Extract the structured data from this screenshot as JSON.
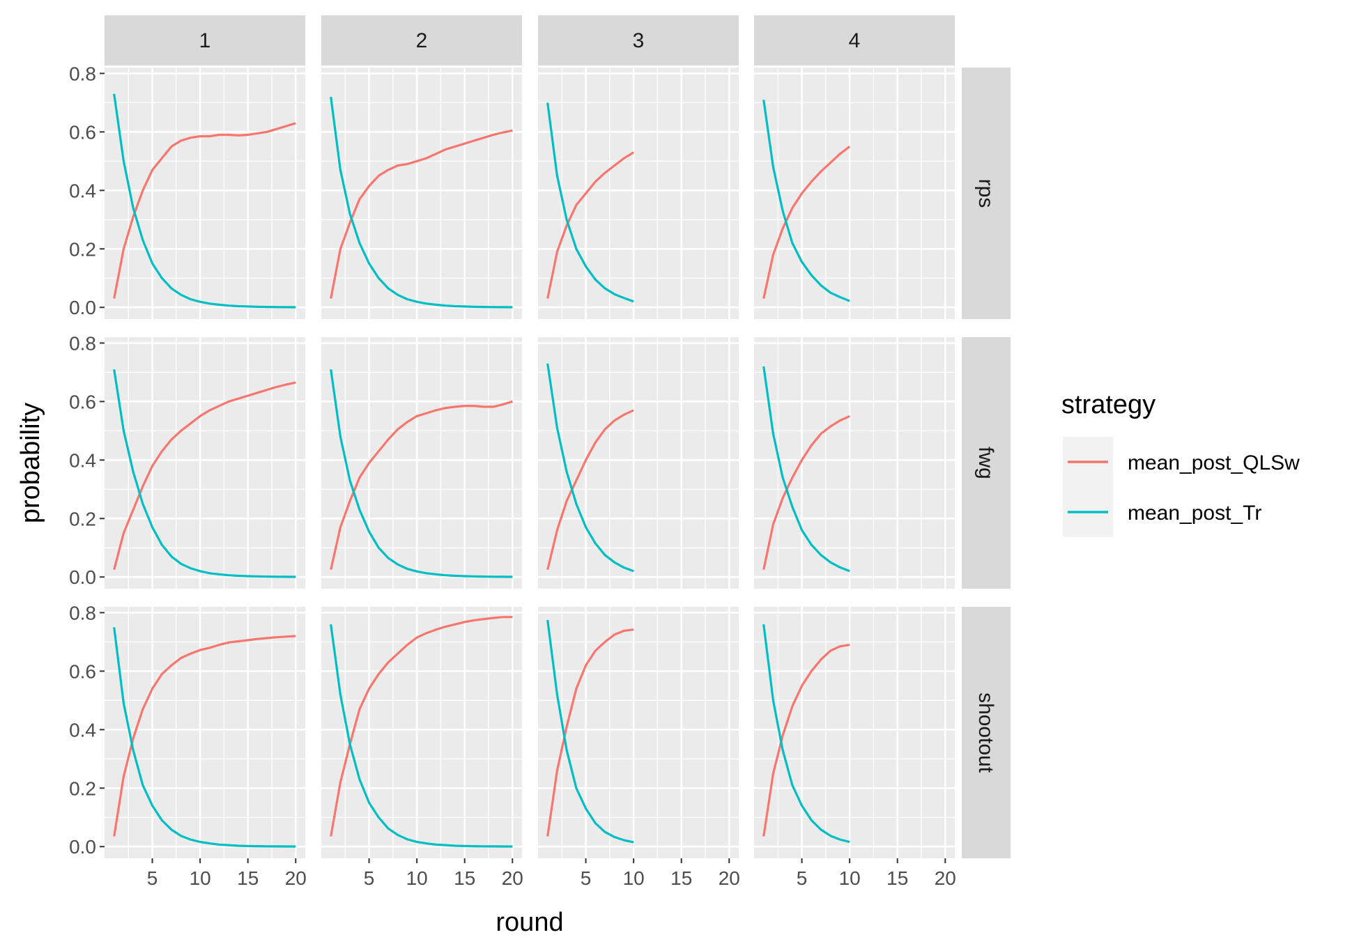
{
  "chart_data": {
    "type": "line",
    "facet_layout": "grid",
    "xlabel": "round",
    "ylabel": "probability",
    "col_facets": [
      "1",
      "2",
      "3",
      "4"
    ],
    "row_facets": [
      "rps",
      "fwg",
      "shootout"
    ],
    "xlim": [
      0,
      21
    ],
    "ylim": [
      -0.04,
      0.82
    ],
    "xticks": [
      5,
      10,
      15,
      20
    ],
    "yticks": [
      0.0,
      0.2,
      0.4,
      0.6,
      0.8
    ],
    "ytick_labels": [
      "0.0",
      "0.2",
      "0.4",
      "0.6",
      "0.8"
    ],
    "grid": true,
    "legend": {
      "title": "strategy",
      "position": "right",
      "entries": [
        {
          "name": "mean_post_QLSw",
          "color": "#F8766D"
        },
        {
          "name": "mean_post_Tr",
          "color": "#00BFC4"
        }
      ]
    },
    "panels": [
      {
        "row": "rps",
        "col": "1",
        "series": [
          {
            "name": "mean_post_QLSw",
            "x": [
              1,
              2,
              3,
              4,
              5,
              6,
              7,
              8,
              9,
              10,
              11,
              12,
              13,
              14,
              15,
              16,
              17,
              18,
              19,
              20
            ],
            "values": [
              0.03,
              0.2,
              0.31,
              0.4,
              0.47,
              0.51,
              0.55,
              0.57,
              0.58,
              0.585,
              0.585,
              0.59,
              0.59,
              0.588,
              0.59,
              0.595,
              0.6,
              0.61,
              0.62,
              0.63
            ]
          },
          {
            "name": "mean_post_Tr",
            "x": [
              1,
              2,
              3,
              4,
              5,
              6,
              7,
              8,
              9,
              10,
              11,
              12,
              13,
              14,
              15,
              16,
              17,
              18,
              19,
              20
            ],
            "values": [
              0.73,
              0.5,
              0.34,
              0.23,
              0.15,
              0.1,
              0.065,
              0.043,
              0.028,
              0.019,
              0.013,
              0.009,
              0.006,
              0.004,
              0.003,
              0.002,
              0.0015,
              0.001,
              0.0008,
              0.0005
            ]
          }
        ]
      },
      {
        "row": "rps",
        "col": "2",
        "series": [
          {
            "name": "mean_post_QLSw",
            "x": [
              1,
              2,
              3,
              4,
              5,
              6,
              7,
              8,
              9,
              10,
              11,
              12,
              13,
              14,
              15,
              16,
              17,
              18,
              19,
              20
            ],
            "values": [
              0.03,
              0.2,
              0.29,
              0.37,
              0.415,
              0.45,
              0.47,
              0.485,
              0.49,
              0.5,
              0.51,
              0.525,
              0.54,
              0.55,
              0.56,
              0.57,
              0.58,
              0.59,
              0.598,
              0.605
            ]
          },
          {
            "name": "mean_post_Tr",
            "x": [
              1,
              2,
              3,
              4,
              5,
              6,
              7,
              8,
              9,
              10,
              11,
              12,
              13,
              14,
              15,
              16,
              17,
              18,
              19,
              20
            ],
            "values": [
              0.72,
              0.47,
              0.32,
              0.22,
              0.15,
              0.1,
              0.065,
              0.043,
              0.028,
              0.019,
              0.013,
              0.009,
              0.006,
              0.004,
              0.003,
              0.002,
              0.0015,
              0.001,
              0.0008,
              0.0005
            ]
          }
        ]
      },
      {
        "row": "rps",
        "col": "3",
        "series": [
          {
            "name": "mean_post_QLSw",
            "x": [
              1,
              2,
              3,
              4,
              5,
              6,
              7,
              8,
              9,
              10
            ],
            "values": [
              0.03,
              0.19,
              0.28,
              0.35,
              0.39,
              0.43,
              0.46,
              0.485,
              0.51,
              0.53
            ]
          },
          {
            "name": "mean_post_Tr",
            "x": [
              1,
              2,
              3,
              4,
              5,
              6,
              7,
              8,
              9,
              10
            ],
            "values": [
              0.7,
              0.45,
              0.3,
              0.2,
              0.14,
              0.095,
              0.065,
              0.045,
              0.032,
              0.02
            ]
          }
        ]
      },
      {
        "row": "rps",
        "col": "4",
        "series": [
          {
            "name": "mean_post_QLSw",
            "x": [
              1,
              2,
              3,
              4,
              5,
              6,
              7,
              8,
              9,
              10
            ],
            "values": [
              0.03,
              0.18,
              0.27,
              0.34,
              0.39,
              0.43,
              0.465,
              0.495,
              0.525,
              0.55
            ]
          },
          {
            "name": "mean_post_Tr",
            "x": [
              1,
              2,
              3,
              4,
              5,
              6,
              7,
              8,
              9,
              10
            ],
            "values": [
              0.71,
              0.48,
              0.33,
              0.22,
              0.155,
              0.11,
              0.075,
              0.05,
              0.035,
              0.022
            ]
          }
        ]
      },
      {
        "row": "fwg",
        "col": "1",
        "series": [
          {
            "name": "mean_post_QLSw",
            "x": [
              1,
              2,
              3,
              4,
              5,
              6,
              7,
              8,
              9,
              10,
              11,
              12,
              13,
              14,
              15,
              16,
              17,
              18,
              19,
              20
            ],
            "values": [
              0.025,
              0.15,
              0.23,
              0.31,
              0.38,
              0.43,
              0.47,
              0.5,
              0.525,
              0.55,
              0.57,
              0.585,
              0.6,
              0.61,
              0.62,
              0.63,
              0.64,
              0.65,
              0.658,
              0.665
            ]
          },
          {
            "name": "mean_post_Tr",
            "x": [
              1,
              2,
              3,
              4,
              5,
              6,
              7,
              8,
              9,
              10,
              11,
              12,
              13,
              14,
              15,
              16,
              17,
              18,
              19,
              20
            ],
            "values": [
              0.71,
              0.5,
              0.36,
              0.25,
              0.17,
              0.11,
              0.07,
              0.045,
              0.03,
              0.02,
              0.013,
              0.009,
              0.006,
              0.004,
              0.003,
              0.002,
              0.0015,
              0.001,
              0.0008,
              0.0005
            ]
          }
        ]
      },
      {
        "row": "fwg",
        "col": "2",
        "series": [
          {
            "name": "mean_post_QLSw",
            "x": [
              1,
              2,
              3,
              4,
              5,
              6,
              7,
              8,
              9,
              10,
              11,
              12,
              13,
              14,
              15,
              16,
              17,
              18,
              19,
              20
            ],
            "values": [
              0.025,
              0.17,
              0.26,
              0.34,
              0.39,
              0.43,
              0.47,
              0.505,
              0.53,
              0.55,
              0.56,
              0.57,
              0.578,
              0.582,
              0.585,
              0.585,
              0.582,
              0.582,
              0.59,
              0.6
            ]
          },
          {
            "name": "mean_post_Tr",
            "x": [
              1,
              2,
              3,
              4,
              5,
              6,
              7,
              8,
              9,
              10,
              11,
              12,
              13,
              14,
              15,
              16,
              17,
              18,
              19,
              20
            ],
            "values": [
              0.71,
              0.48,
              0.33,
              0.23,
              0.155,
              0.1,
              0.065,
              0.043,
              0.028,
              0.019,
              0.013,
              0.009,
              0.006,
              0.004,
              0.003,
              0.002,
              0.0015,
              0.001,
              0.0008,
              0.0005
            ]
          }
        ]
      },
      {
        "row": "fwg",
        "col": "3",
        "series": [
          {
            "name": "mean_post_QLSw",
            "x": [
              1,
              2,
              3,
              4,
              5,
              6,
              7,
              8,
              9,
              10
            ],
            "values": [
              0.025,
              0.16,
              0.26,
              0.33,
              0.4,
              0.46,
              0.505,
              0.535,
              0.555,
              0.57
            ]
          },
          {
            "name": "mean_post_Tr",
            "x": [
              1,
              2,
              3,
              4,
              5,
              6,
              7,
              8,
              9,
              10
            ],
            "values": [
              0.73,
              0.51,
              0.36,
              0.25,
              0.17,
              0.115,
              0.075,
              0.05,
              0.032,
              0.02
            ]
          }
        ]
      },
      {
        "row": "fwg",
        "col": "4",
        "series": [
          {
            "name": "mean_post_QLSw",
            "x": [
              1,
              2,
              3,
              4,
              5,
              6,
              7,
              8,
              9,
              10
            ],
            "values": [
              0.025,
              0.18,
              0.27,
              0.34,
              0.4,
              0.45,
              0.49,
              0.515,
              0.535,
              0.55
            ]
          },
          {
            "name": "mean_post_Tr",
            "x": [
              1,
              2,
              3,
              4,
              5,
              6,
              7,
              8,
              9,
              10
            ],
            "values": [
              0.72,
              0.49,
              0.34,
              0.24,
              0.16,
              0.11,
              0.075,
              0.05,
              0.033,
              0.02
            ]
          }
        ]
      },
      {
        "row": "shootout",
        "col": "1",
        "series": [
          {
            "name": "mean_post_QLSw",
            "x": [
              1,
              2,
              3,
              4,
              5,
              6,
              7,
              8,
              9,
              10,
              11,
              12,
              13,
              14,
              15,
              16,
              17,
              18,
              19,
              20
            ],
            "values": [
              0.035,
              0.24,
              0.37,
              0.47,
              0.54,
              0.59,
              0.62,
              0.645,
              0.66,
              0.672,
              0.68,
              0.69,
              0.698,
              0.702,
              0.706,
              0.71,
              0.713,
              0.716,
              0.718,
              0.72
            ]
          },
          {
            "name": "mean_post_Tr",
            "x": [
              1,
              2,
              3,
              4,
              5,
              6,
              7,
              8,
              9,
              10,
              11,
              12,
              13,
              14,
              15,
              16,
              17,
              18,
              19,
              20
            ],
            "values": [
              0.75,
              0.49,
              0.33,
              0.21,
              0.14,
              0.09,
              0.058,
              0.037,
              0.024,
              0.016,
              0.011,
              0.007,
              0.005,
              0.003,
              0.002,
              0.0015,
              0.001,
              0.0008,
              0.0006,
              0.0004
            ]
          }
        ]
      },
      {
        "row": "shootout",
        "col": "2",
        "series": [
          {
            "name": "mean_post_QLSw",
            "x": [
              1,
              2,
              3,
              4,
              5,
              6,
              7,
              8,
              9,
              10,
              11,
              12,
              13,
              14,
              15,
              16,
              17,
              18,
              19,
              20
            ],
            "values": [
              0.035,
              0.22,
              0.35,
              0.47,
              0.54,
              0.59,
              0.63,
              0.66,
              0.69,
              0.715,
              0.73,
              0.742,
              0.752,
              0.76,
              0.768,
              0.774,
              0.778,
              0.782,
              0.785,
              0.785
            ]
          },
          {
            "name": "mean_post_Tr",
            "x": [
              1,
              2,
              3,
              4,
              5,
              6,
              7,
              8,
              9,
              10,
              11,
              12,
              13,
              14,
              15,
              16,
              17,
              18,
              19,
              20
            ],
            "values": [
              0.76,
              0.52,
              0.35,
              0.23,
              0.15,
              0.1,
              0.062,
              0.04,
              0.025,
              0.016,
              0.011,
              0.007,
              0.005,
              0.003,
              0.002,
              0.0015,
              0.001,
              0.0008,
              0.0006,
              0.0004
            ]
          }
        ]
      },
      {
        "row": "shootout",
        "col": "3",
        "series": [
          {
            "name": "mean_post_QLSw",
            "x": [
              1,
              2,
              3,
              4,
              5,
              6,
              7,
              8,
              9,
              10
            ],
            "values": [
              0.035,
              0.26,
              0.41,
              0.54,
              0.62,
              0.67,
              0.7,
              0.725,
              0.738,
              0.742
            ]
          },
          {
            "name": "mean_post_Tr",
            "x": [
              1,
              2,
              3,
              4,
              5,
              6,
              7,
              8,
              9,
              10
            ],
            "values": [
              0.775,
              0.52,
              0.33,
              0.2,
              0.13,
              0.08,
              0.05,
              0.033,
              0.022,
              0.015
            ]
          }
        ]
      },
      {
        "row": "shootout",
        "col": "4",
        "series": [
          {
            "name": "mean_post_QLSw",
            "x": [
              1,
              2,
              3,
              4,
              5,
              6,
              7,
              8,
              9,
              10
            ],
            "values": [
              0.035,
              0.25,
              0.38,
              0.48,
              0.55,
              0.6,
              0.64,
              0.67,
              0.685,
              0.69
            ]
          },
          {
            "name": "mean_post_Tr",
            "x": [
              1,
              2,
              3,
              4,
              5,
              6,
              7,
              8,
              9,
              10
            ],
            "values": [
              0.76,
              0.5,
              0.33,
              0.21,
              0.14,
              0.09,
              0.058,
              0.037,
              0.024,
              0.016
            ]
          }
        ]
      }
    ]
  }
}
